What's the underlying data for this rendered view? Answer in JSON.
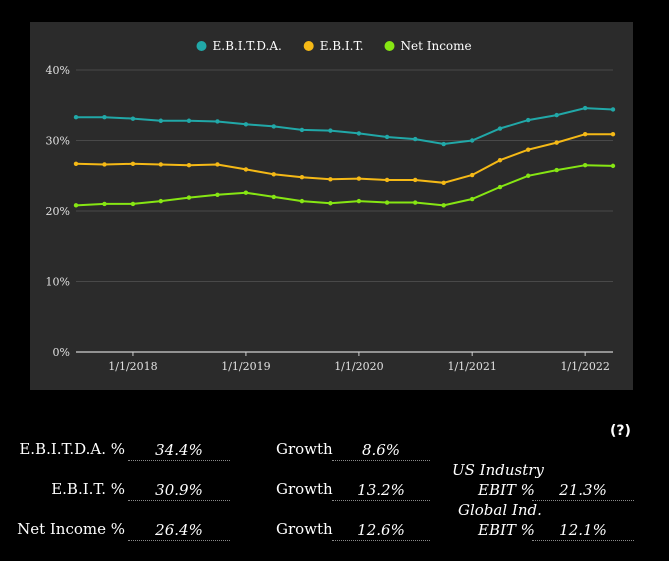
{
  "chart_data": {
    "type": "line",
    "x": [
      "2017-07-01",
      "2017-10-01",
      "2018-01-01",
      "2018-04-01",
      "2018-07-01",
      "2018-10-01",
      "2019-01-01",
      "2019-04-01",
      "2019-07-01",
      "2019-10-01",
      "2020-01-01",
      "2020-04-01",
      "2020-07-01",
      "2020-10-01",
      "2021-01-01",
      "2021-04-01",
      "2021-07-01",
      "2021-10-01",
      "2022-01-01",
      "2022-04-01"
    ],
    "x_ticks": [
      "1/1/2018",
      "1/1/2019",
      "1/1/2020",
      "1/1/2021",
      "1/1/2022"
    ],
    "y_ticks": [
      "0%",
      "10%",
      "20%",
      "30%",
      "40%"
    ],
    "ylim": [
      0,
      40
    ],
    "grid": true,
    "legend": "top-center",
    "series": [
      {
        "name": "E.B.I.T.D.A.",
        "color": "#21a8a8",
        "values": [
          33.3,
          33.3,
          33.1,
          32.8,
          32.8,
          32.7,
          32.3,
          32.0,
          31.5,
          31.4,
          31.0,
          30.5,
          30.2,
          29.5,
          30.0,
          31.7,
          32.9,
          33.6,
          34.6,
          34.4
        ]
      },
      {
        "name": "E.B.I.T.",
        "color": "#f5b916",
        "values": [
          26.7,
          26.6,
          26.7,
          26.6,
          26.5,
          26.6,
          25.9,
          25.2,
          24.8,
          24.5,
          24.6,
          24.4,
          24.4,
          24.0,
          25.1,
          27.2,
          28.7,
          29.7,
          30.9,
          30.9
        ]
      },
      {
        "name": "Net Income",
        "color": "#86e613",
        "values": [
          20.8,
          21.0,
          21.0,
          21.4,
          21.9,
          22.3,
          22.6,
          22.0,
          21.4,
          21.1,
          21.4,
          21.2,
          21.2,
          20.8,
          21.7,
          23.4,
          25.0,
          25.8,
          26.5,
          26.4
        ]
      }
    ]
  },
  "summary": {
    "help": "(?)",
    "rows": [
      {
        "label": "E.B.I.T.D.A. %",
        "value": "34.4%",
        "growth_label": "Growth",
        "growth_value": "8.6%"
      },
      {
        "label": "E.B.I.T. %",
        "value": "30.9%",
        "growth_label": "Growth",
        "growth_value": "13.2%"
      },
      {
        "label": "Net Income %",
        "value": "26.4%",
        "growth_label": "Growth",
        "growth_value": "12.6%"
      }
    ],
    "us_industry": {
      "line1": "US Industry",
      "line2": "EBIT %",
      "value": "21.3%"
    },
    "global_industry": {
      "line1": "Global Ind.",
      "line2": "EBIT %",
      "value": "12.1%"
    }
  }
}
